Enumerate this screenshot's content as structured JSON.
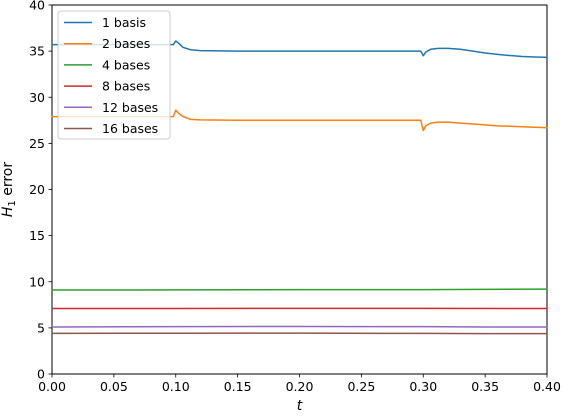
{
  "chart_data": {
    "type": "line",
    "title": "",
    "xlabel": "t",
    "ylabel": {
      "main": "H",
      "sub": "1",
      "rest": " error"
    },
    "xlim": [
      0.0,
      0.4
    ],
    "ylim": [
      0,
      40
    ],
    "xticks": [
      {
        "value": 0.0,
        "label": "0.00"
      },
      {
        "value": 0.05,
        "label": "0.05"
      },
      {
        "value": 0.1,
        "label": "0.10"
      },
      {
        "value": 0.15,
        "label": "0.15"
      },
      {
        "value": 0.2,
        "label": "0.20"
      },
      {
        "value": 0.25,
        "label": "0.25"
      },
      {
        "value": 0.3,
        "label": "0.30"
      },
      {
        "value": 0.35,
        "label": "0.35"
      },
      {
        "value": 0.4,
        "label": "0.40"
      }
    ],
    "yticks": [
      {
        "value": 0,
        "label": "0"
      },
      {
        "value": 5,
        "label": "5"
      },
      {
        "value": 10,
        "label": "10"
      },
      {
        "value": 15,
        "label": "15"
      },
      {
        "value": 20,
        "label": "20"
      },
      {
        "value": 25,
        "label": "25"
      },
      {
        "value": 30,
        "label": "30"
      },
      {
        "value": 35,
        "label": "35"
      },
      {
        "value": 40,
        "label": "40"
      }
    ],
    "grid": false,
    "legend_position": "top-left",
    "series": [
      {
        "name": "1 basis",
        "color": "#1f77b4",
        "points": [
          [
            0.0,
            35.7
          ],
          [
            0.098,
            35.7
          ],
          [
            0.1,
            36.1
          ],
          [
            0.102,
            35.9
          ],
          [
            0.106,
            35.4
          ],
          [
            0.112,
            35.15
          ],
          [
            0.12,
            35.05
          ],
          [
            0.15,
            35.0
          ],
          [
            0.2,
            35.0
          ],
          [
            0.25,
            35.0
          ],
          [
            0.298,
            35.0
          ],
          [
            0.3,
            34.5
          ],
          [
            0.302,
            34.9
          ],
          [
            0.306,
            35.2
          ],
          [
            0.312,
            35.3
          ],
          [
            0.32,
            35.3
          ],
          [
            0.33,
            35.2
          ],
          [
            0.34,
            35.0
          ],
          [
            0.35,
            34.8
          ],
          [
            0.36,
            34.65
          ],
          [
            0.37,
            34.52
          ],
          [
            0.38,
            34.42
          ],
          [
            0.39,
            34.36
          ],
          [
            0.4,
            34.33
          ]
        ]
      },
      {
        "name": "2 bases",
        "color": "#ff7f0e",
        "points": [
          [
            0.0,
            27.9
          ],
          [
            0.098,
            27.9
          ],
          [
            0.1,
            28.6
          ],
          [
            0.102,
            28.3
          ],
          [
            0.106,
            27.9
          ],
          [
            0.112,
            27.6
          ],
          [
            0.12,
            27.55
          ],
          [
            0.15,
            27.5
          ],
          [
            0.2,
            27.5
          ],
          [
            0.25,
            27.5
          ],
          [
            0.298,
            27.5
          ],
          [
            0.3,
            26.4
          ],
          [
            0.302,
            26.9
          ],
          [
            0.306,
            27.2
          ],
          [
            0.312,
            27.3
          ],
          [
            0.32,
            27.3
          ],
          [
            0.33,
            27.2
          ],
          [
            0.34,
            27.1
          ],
          [
            0.35,
            27.0
          ],
          [
            0.36,
            26.9
          ],
          [
            0.37,
            26.85
          ],
          [
            0.38,
            26.8
          ],
          [
            0.39,
            26.75
          ],
          [
            0.4,
            26.7
          ]
        ]
      },
      {
        "name": "4 bases",
        "color": "#2ca02c",
        "points": [
          [
            0.0,
            9.1
          ],
          [
            0.1,
            9.12
          ],
          [
            0.2,
            9.15
          ],
          [
            0.3,
            9.15
          ],
          [
            0.35,
            9.17
          ],
          [
            0.4,
            9.2
          ]
        ]
      },
      {
        "name": "8 bases",
        "color": "#d62728",
        "points": [
          [
            0.0,
            7.1
          ],
          [
            0.1,
            7.1
          ],
          [
            0.2,
            7.12
          ],
          [
            0.3,
            7.12
          ],
          [
            0.4,
            7.1
          ]
        ]
      },
      {
        "name": "12 bases",
        "color": "#9467bd",
        "points": [
          [
            0.0,
            5.1
          ],
          [
            0.1,
            5.13
          ],
          [
            0.2,
            5.15
          ],
          [
            0.3,
            5.13
          ],
          [
            0.35,
            5.1
          ],
          [
            0.4,
            5.1
          ]
        ]
      },
      {
        "name": "16 bases",
        "color": "#8c564b",
        "points": [
          [
            0.0,
            4.4
          ],
          [
            0.1,
            4.42
          ],
          [
            0.2,
            4.43
          ],
          [
            0.3,
            4.4
          ],
          [
            0.35,
            4.38
          ],
          [
            0.4,
            4.38
          ]
        ]
      }
    ]
  }
}
